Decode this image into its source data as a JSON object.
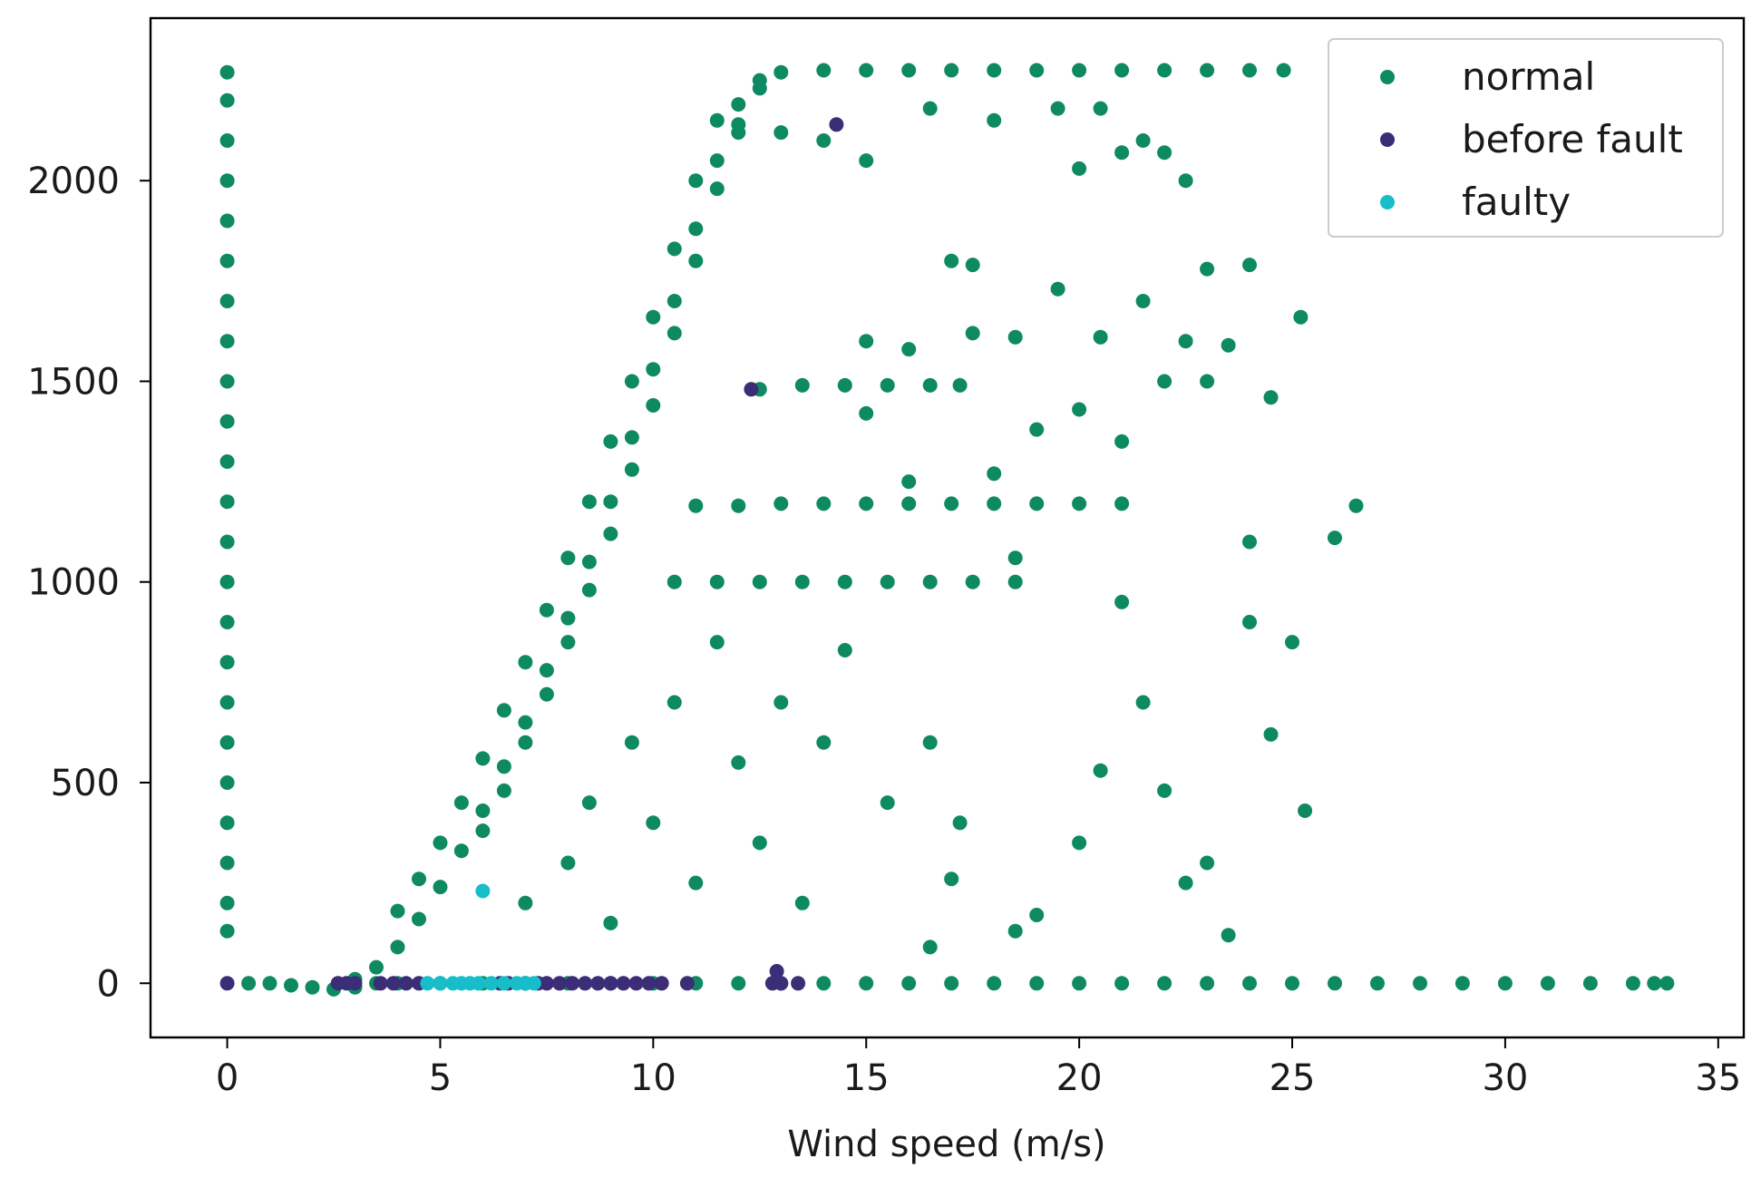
{
  "chart_data": {
    "type": "scatter",
    "title": "",
    "xlabel": "Wind speed (m/s)",
    "ylabel": "",
    "xlim": [
      -1.8,
      35.6
    ],
    "ylim": [
      -135,
      2405
    ],
    "xticks": [
      0,
      5,
      10,
      15,
      20,
      25,
      30,
      35
    ],
    "yticks": [
      0,
      500,
      1000,
      1500,
      2000
    ],
    "grid": false,
    "legend_position": "top-right",
    "series": [
      {
        "name": "normal",
        "color": "#0e8a62",
        "points": [
          [
            0,
            2270
          ],
          [
            0,
            2200
          ],
          [
            0,
            2100
          ],
          [
            0,
            2000
          ],
          [
            0,
            1900
          ],
          [
            0,
            1800
          ],
          [
            0,
            1700
          ],
          [
            0,
            1600
          ],
          [
            0,
            1500
          ],
          [
            0,
            1400
          ],
          [
            0,
            1300
          ],
          [
            0,
            1200
          ],
          [
            0,
            1100
          ],
          [
            0,
            1000
          ],
          [
            0,
            900
          ],
          [
            0,
            800
          ],
          [
            0,
            700
          ],
          [
            0,
            600
          ],
          [
            0,
            500
          ],
          [
            0,
            400
          ],
          [
            0,
            300
          ],
          [
            0,
            200
          ],
          [
            0,
            130
          ],
          [
            0.5,
            0
          ],
          [
            1,
            0
          ],
          [
            1.5,
            -5
          ],
          [
            2,
            -10
          ],
          [
            2.5,
            -15
          ],
          [
            3,
            -10
          ],
          [
            3.5,
            0
          ],
          [
            4,
            0
          ],
          [
            5,
            0
          ],
          [
            6,
            0
          ],
          [
            7,
            0
          ],
          [
            8,
            0
          ],
          [
            9,
            0
          ],
          [
            10,
            0
          ],
          [
            11,
            0
          ],
          [
            12,
            0
          ],
          [
            13,
            0
          ],
          [
            14,
            0
          ],
          [
            15,
            0
          ],
          [
            16,
            0
          ],
          [
            17,
            0
          ],
          [
            18,
            0
          ],
          [
            19,
            0
          ],
          [
            20,
            0
          ],
          [
            21,
            0
          ],
          [
            22,
            0
          ],
          [
            23,
            0
          ],
          [
            24,
            0
          ],
          [
            25,
            0
          ],
          [
            26,
            0
          ],
          [
            27,
            0
          ],
          [
            28,
            0
          ],
          [
            29,
            0
          ],
          [
            30,
            0
          ],
          [
            31,
            0
          ],
          [
            32,
            0
          ],
          [
            33,
            0
          ],
          [
            33.5,
            0
          ],
          [
            33.8,
            0
          ],
          [
            3,
            10
          ],
          [
            3.5,
            40
          ],
          [
            4,
            90
          ],
          [
            4.5,
            160
          ],
          [
            5,
            240
          ],
          [
            5.5,
            330
          ],
          [
            6,
            430
          ],
          [
            6.5,
            540
          ],
          [
            7,
            650
          ],
          [
            7.5,
            780
          ],
          [
            8,
            910
          ],
          [
            8.5,
            1050
          ],
          [
            9,
            1200
          ],
          [
            9.5,
            1360
          ],
          [
            10,
            1530
          ],
          [
            10.5,
            1700
          ],
          [
            11,
            1880
          ],
          [
            11.5,
            2050
          ],
          [
            12,
            2190
          ],
          [
            12.5,
            2250
          ],
          [
            13,
            2270
          ],
          [
            14,
            2275
          ],
          [
            15,
            2275
          ],
          [
            16,
            2275
          ],
          [
            17,
            2275
          ],
          [
            18,
            2275
          ],
          [
            19,
            2275
          ],
          [
            20,
            2275
          ],
          [
            21,
            2275
          ],
          [
            22,
            2275
          ],
          [
            23,
            2275
          ],
          [
            24,
            2275
          ],
          [
            24.8,
            2275
          ],
          [
            6,
            380
          ],
          [
            6.5,
            480
          ],
          [
            7,
            600
          ],
          [
            7.5,
            720
          ],
          [
            8,
            850
          ],
          [
            8.5,
            980
          ],
          [
            9,
            1120
          ],
          [
            9.5,
            1280
          ],
          [
            10,
            1440
          ],
          [
            10.5,
            1620
          ],
          [
            11,
            1800
          ],
          [
            11.5,
            1980
          ],
          [
            12,
            2120
          ],
          [
            12.5,
            2230
          ],
          [
            4,
            180
          ],
          [
            4.5,
            260
          ],
          [
            5,
            350
          ],
          [
            5.5,
            450
          ],
          [
            6,
            560
          ],
          [
            6.5,
            680
          ],
          [
            7,
            800
          ],
          [
            7.5,
            930
          ],
          [
            8,
            1060
          ],
          [
            8.5,
            1200
          ],
          [
            9,
            1350
          ],
          [
            9.5,
            1500
          ],
          [
            10,
            1660
          ],
          [
            10.5,
            1830
          ],
          [
            11,
            2000
          ],
          [
            11.5,
            2150
          ],
          [
            12.5,
            1480
          ],
          [
            13.5,
            1490
          ],
          [
            14.5,
            1490
          ],
          [
            15.5,
            1490
          ],
          [
            16.5,
            1490
          ],
          [
            17.2,
            1490
          ],
          [
            11,
            1190
          ],
          [
            12,
            1190
          ],
          [
            13,
            1195
          ],
          [
            14,
            1195
          ],
          [
            15,
            1195
          ],
          [
            16,
            1195
          ],
          [
            17,
            1195
          ],
          [
            18,
            1195
          ],
          [
            19,
            1195
          ],
          [
            20,
            1195
          ],
          [
            21,
            1195
          ],
          [
            10.5,
            1000
          ],
          [
            11.5,
            1000
          ],
          [
            12.5,
            1000
          ],
          [
            13.5,
            1000
          ],
          [
            14.5,
            1000
          ],
          [
            15.5,
            1000
          ],
          [
            16.5,
            1000
          ],
          [
            17.5,
            1000
          ],
          [
            18.5,
            1000
          ],
          [
            7,
            200
          ],
          [
            8,
            300
          ],
          [
            8.5,
            450
          ],
          [
            9,
            150
          ],
          [
            9.5,
            600
          ],
          [
            10,
            400
          ],
          [
            10.5,
            700
          ],
          [
            11,
            250
          ],
          [
            11.5,
            850
          ],
          [
            12,
            550
          ],
          [
            12.5,
            350
          ],
          [
            13,
            700
          ],
          [
            13.5,
            200
          ],
          [
            14,
            600
          ],
          [
            14.5,
            830
          ],
          [
            15,
            1600
          ],
          [
            15.5,
            450
          ],
          [
            16,
            1250
          ],
          [
            16.5,
            600
          ],
          [
            17,
            1800
          ],
          [
            17.5,
            1620
          ],
          [
            18,
            1270
          ],
          [
            18.5,
            1610
          ],
          [
            19,
            170
          ],
          [
            19.5,
            1730
          ],
          [
            20,
            2030
          ],
          [
            20.5,
            1610
          ],
          [
            21,
            2070
          ],
          [
            21.5,
            1700
          ],
          [
            22,
            2070
          ],
          [
            22.5,
            1600
          ],
          [
            23,
            1500
          ],
          [
            23.5,
            1590
          ],
          [
            24,
            1100
          ],
          [
            24.5,
            1460
          ],
          [
            25,
            850
          ],
          [
            25.2,
            1660
          ],
          [
            25.3,
            430
          ],
          [
            26,
            1110
          ],
          [
            26.5,
            1190
          ],
          [
            16.5,
            90
          ],
          [
            17,
            260
          ],
          [
            17.2,
            400
          ],
          [
            18.5,
            130
          ],
          [
            20,
            350
          ],
          [
            20.5,
            530
          ],
          [
            21,
            950
          ],
          [
            21.5,
            700
          ],
          [
            22,
            480
          ],
          [
            22.5,
            250
          ],
          [
            23,
            300
          ],
          [
            23.5,
            120
          ],
          [
            24,
            900
          ],
          [
            24.5,
            620
          ],
          [
            12,
            2140
          ],
          [
            13,
            2120
          ],
          [
            14,
            2100
          ],
          [
            15,
            2050
          ],
          [
            16.5,
            2180
          ],
          [
            18,
            2150
          ],
          [
            19.5,
            2180
          ],
          [
            20.5,
            2180
          ],
          [
            21.5,
            2100
          ],
          [
            22.5,
            2000
          ],
          [
            23,
            1780
          ],
          [
            24,
            1790
          ],
          [
            21,
            1350
          ],
          [
            22,
            1500
          ],
          [
            19,
            1380
          ],
          [
            20,
            1430
          ],
          [
            18.5,
            1060
          ],
          [
            17.5,
            1790
          ],
          [
            16,
            1580
          ],
          [
            15,
            1420
          ]
        ]
      },
      {
        "name": "before fault",
        "color": "#3b2d76",
        "points": [
          [
            0,
            0
          ],
          [
            2.6,
            0
          ],
          [
            2.8,
            0
          ],
          [
            3,
            0
          ],
          [
            3.6,
            0
          ],
          [
            3.9,
            0
          ],
          [
            4.2,
            0
          ],
          [
            4.5,
            0
          ],
          [
            6.4,
            0
          ],
          [
            6.6,
            0
          ],
          [
            7,
            0
          ],
          [
            7.3,
            0
          ],
          [
            7.5,
            0
          ],
          [
            7.8,
            0
          ],
          [
            8.1,
            0
          ],
          [
            8.4,
            0
          ],
          [
            8.7,
            0
          ],
          [
            9,
            0
          ],
          [
            9.3,
            0
          ],
          [
            9.6,
            0
          ],
          [
            9.9,
            0
          ],
          [
            10.2,
            0
          ],
          [
            10.8,
            0
          ],
          [
            12.8,
            0
          ],
          [
            13,
            0
          ],
          [
            13.4,
            0
          ],
          [
            12.9,
            30
          ],
          [
            12.3,
            1480
          ],
          [
            14.3,
            2140
          ]
        ]
      },
      {
        "name": "faulty",
        "color": "#17bec9",
        "points": [
          [
            4.7,
            0
          ],
          [
            5,
            0
          ],
          [
            5.3,
            0
          ],
          [
            5.5,
            0
          ],
          [
            5.7,
            0
          ],
          [
            5.9,
            0
          ],
          [
            6.2,
            0
          ],
          [
            6.5,
            0
          ],
          [
            6.8,
            0
          ],
          [
            7,
            0
          ],
          [
            7.2,
            0
          ],
          [
            6,
            230
          ]
        ]
      }
    ]
  }
}
